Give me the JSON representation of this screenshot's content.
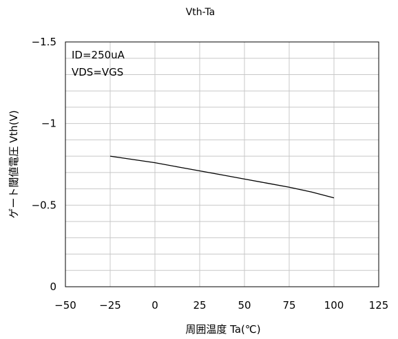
{
  "chart_data": {
    "type": "line",
    "title": "Vth-Ta",
    "xlabel": "周囲温度  Ta(℃)",
    "ylabel": "ゲート閾値電圧  Vth(V)",
    "xlim": [
      -50,
      125
    ],
    "ylim": [
      0,
      -1.5
    ],
    "x_ticks": [
      -50,
      -25,
      0,
      25,
      50,
      75,
      100,
      125
    ],
    "x_tick_labels": [
      "−50",
      "−25",
      "0",
      "25",
      "50",
      "75",
      "100",
      "125"
    ],
    "y_ticks": [
      0,
      -0.5,
      -1,
      -1.5
    ],
    "y_tick_labels": [
      "0",
      "−0.5",
      "−1",
      "−1.5"
    ],
    "y_minor_step": -0.1,
    "grid": true,
    "annotations": [
      "ID=250uA",
      "VDS=VGS"
    ],
    "series": [
      {
        "x": [
          -25,
          -12.5,
          0,
          12.5,
          25,
          37.5,
          50,
          62.5,
          75,
          87.5,
          100
        ],
        "y": [
          -0.8,
          -0.78,
          -0.76,
          -0.735,
          -0.71,
          -0.685,
          -0.66,
          -0.635,
          -0.61,
          -0.58,
          -0.545
        ]
      }
    ]
  }
}
